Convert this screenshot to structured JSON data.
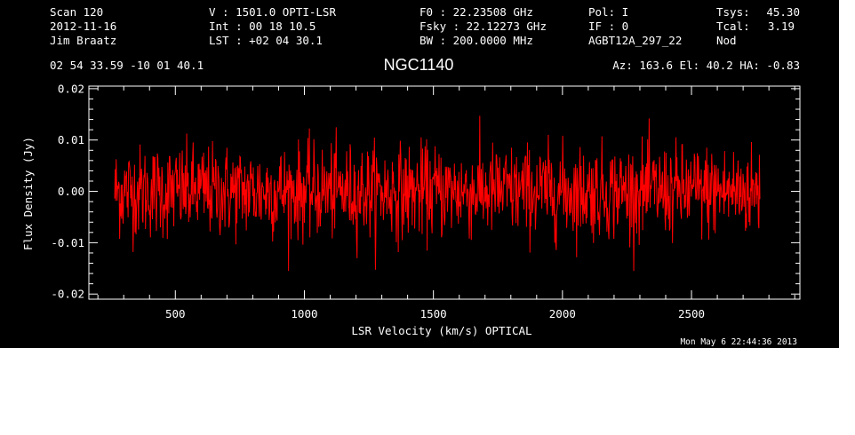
{
  "header": {
    "col1": [
      "Scan        120",
      "2012-11-16",
      "Jim Braatz"
    ],
    "col2": [
      "V   :     1501.0 OPTI-LSR",
      "Int  :  00 18 10.5",
      "LST : +02 04 30.1"
    ],
    "col3": [
      "F0    :  22.23508 GHz",
      "Fsky :  22.12273 GHz",
      "BW    : 200.0000 MHz"
    ],
    "col4": [
      "Pol:      I",
      "IF :      0",
      "AGBT12A_297_22"
    ],
    "col5_labels": [
      "Tsys:",
      "Tcal:",
      "Nod"
    ],
    "col5_values": [
      "45.30",
      "3.19",
      ""
    ],
    "coords": "02 54 33.59  -10 01 40.1",
    "object": "NGC1140",
    "az_el_ha": "Az: 163.6   El:  40.2   HA: -0.83"
  },
  "timestamp": "Mon May  6 22:44:36 2013",
  "chart_data": {
    "type": "line",
    "xlabel": "LSR Velocity (km/s) OPTICAL",
    "ylabel": "Flux Density (Jy)",
    "xlim": [
      165,
      2920
    ],
    "ylim": [
      -0.021,
      0.0205
    ],
    "x_ticks": [
      500,
      1000,
      1500,
      2000,
      2500
    ],
    "x_tick_labels": [
      "500",
      "1000",
      "1500",
      "2000",
      "2500"
    ],
    "y_ticks": [
      -0.02,
      -0.01,
      0.0,
      0.01,
      0.02
    ],
    "y_tick_labels": [
      "-0.02",
      "-0.01",
      "0.00",
      "0.01",
      "0.02"
    ],
    "series": [
      {
        "color": "#ff0000",
        "x_range": [
          265,
          2765
        ],
        "n_points": 1300,
        "mean": 0.0,
        "rms": 0.0045,
        "y_extent": [
          -0.0155,
          0.0185
        ]
      }
    ]
  }
}
